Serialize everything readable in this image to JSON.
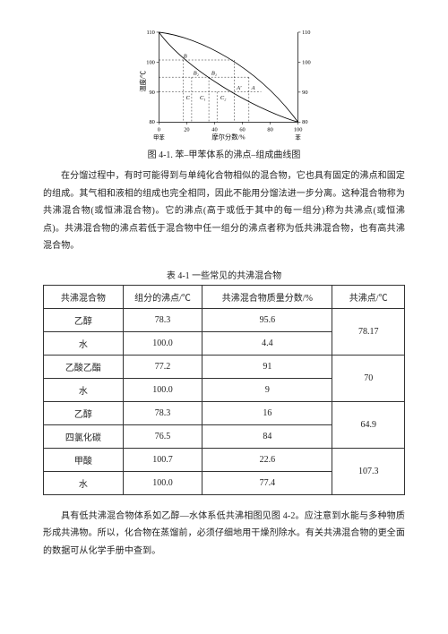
{
  "chart": {
    "type": "line",
    "x_label": "摩尔分数/%",
    "y_label": "温度/℃",
    "left_corner": "甲苯",
    "right_corner": "苯",
    "xlim": [
      0,
      100
    ],
    "ylim": [
      78,
      112
    ],
    "xticks": [
      0,
      20,
      40,
      60,
      80,
      100
    ],
    "yticks_left": [
      80,
      90,
      100,
      110
    ],
    "yticks_right": [
      80,
      90,
      100,
      110
    ],
    "axis_color": "#000000",
    "grid_color": "#000000",
    "upper_curve": [
      [
        0,
        110
      ],
      [
        20,
        106
      ],
      [
        40,
        100
      ],
      [
        60,
        94
      ],
      [
        80,
        87
      ],
      [
        100,
        80
      ]
    ],
    "lower_curve": [
      [
        0,
        110
      ],
      [
        20,
        100.5
      ],
      [
        40,
        93
      ],
      [
        60,
        87.5
      ],
      [
        80,
        83
      ],
      [
        100,
        80
      ]
    ],
    "dashed_marks": {
      "x_vals": [
        18,
        24,
        36,
        42,
        54
      ],
      "labels_top": [
        "B",
        "B₂",
        "B₁"
      ],
      "labels_bottom": [
        "C",
        "C₁",
        "C₂",
        "A'",
        "A"
      ]
    },
    "line_color": "#000000",
    "dash_color": "#000000",
    "bg": "#ffffff",
    "font_size_axis": 7
  },
  "caption1": "图 4-1. 苯–甲苯体系的沸点–组成曲线图",
  "para1": "在分馏过程中，有时可能得到与单纯化合物相似的混合物，它也具有固定的沸点和固定的组成。其气相和液相的组成也完全相同，因此不能用分馏法进一步分离。这种混合物称为共沸混合物(或恒沸混合物)。它的沸点(高于或低于其中的每一组分)称为共沸点(或恒沸点)。共沸混合物的沸点若低于混合物中任一组分的沸点者称为低共沸混合物，也有高共沸混合物。",
  "tbl_caption": "表 4-1  一些常见的共沸混合物",
  "table": {
    "columns": [
      "共沸混合物",
      "组分的沸点/℃",
      "共沸混合物质量分数/%",
      "共沸点/℃"
    ],
    "col_widths": [
      "22%",
      "22%",
      "36%",
      "20%"
    ],
    "groups": [
      {
        "rows": [
          [
            "乙醇",
            "78.3",
            "95.6"
          ],
          [
            "水",
            "100.0",
            "4.4"
          ]
        ],
        "bp": "78.17"
      },
      {
        "rows": [
          [
            "乙酸乙酯",
            "77.2",
            "91"
          ],
          [
            "水",
            "100.0",
            "9"
          ]
        ],
        "bp": "70"
      },
      {
        "rows": [
          [
            "乙醇",
            "78.3",
            "16"
          ],
          [
            "四氯化碳",
            "76.5",
            "84"
          ]
        ],
        "bp": "64.9"
      },
      {
        "rows": [
          [
            "甲酸",
            "100.7",
            "22.6"
          ],
          [
            "水",
            "100.0",
            "77.4"
          ]
        ],
        "bp": "107.3"
      }
    ]
  },
  "para2": "具有低共沸混合物体系如乙醇—水体系低共沸相图见图 4-2。应注意到水能与多种物质形成共沸物。所以，化合物在蒸馏前，必须仔细地用干燥剂除水。有关共沸混合物的更全面的数据可从化学手册中查到。"
}
